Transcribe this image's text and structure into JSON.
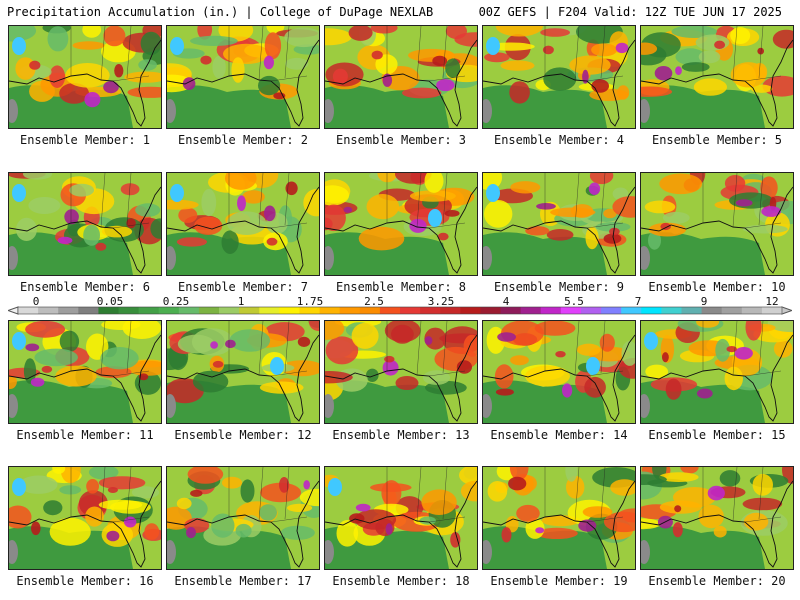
{
  "header": {
    "title": "Precipitation Accumulation (in.) | College of DuPage NEXLAB",
    "run_info": "00Z GEFS | F204 Valid: 12Z TUE JUN 17 2025"
  },
  "panels": [
    {
      "label": "Ensemble Member: 1"
    },
    {
      "label": "Ensemble Member: 2"
    },
    {
      "label": "Ensemble Member: 3"
    },
    {
      "label": "Ensemble Member: 4"
    },
    {
      "label": "Ensemble Member: 5"
    },
    {
      "label": "Ensemble Member: 6"
    },
    {
      "label": "Ensemble Member: 7"
    },
    {
      "label": "Ensemble Member: 8"
    },
    {
      "label": "Ensemble Member: 9"
    },
    {
      "label": "Ensemble Member: 10"
    },
    {
      "label": "Ensemble Member: 11"
    },
    {
      "label": "Ensemble Member: 12"
    },
    {
      "label": "Ensemble Member: 13"
    },
    {
      "label": "Ensemble Member: 14"
    },
    {
      "label": "Ensemble Member: 15"
    },
    {
      "label": "Ensemble Member: 16"
    },
    {
      "label": "Ensemble Member: 17"
    },
    {
      "label": "Ensemble Member: 18"
    },
    {
      "label": "Ensemble Member: 19"
    },
    {
      "label": "Ensemble Member: 20"
    }
  ],
  "colorbar": {
    "labels": [
      "0",
      "0.05",
      "0.25",
      "1",
      "1.75",
      "2.5",
      "3.25",
      "4",
      "5.5",
      "7",
      "9",
      "12"
    ],
    "colors": [
      "#d9d9d9",
      "#bdbdbd",
      "#9e9e9e",
      "#7f7f7f",
      "#2e7d32",
      "#388e3c",
      "#43a047",
      "#4caf50",
      "#66bb6a",
      "#7cb342",
      "#9ccc65",
      "#c0ca33",
      "#e6ee29",
      "#fff200",
      "#ffd600",
      "#ffb300",
      "#ff9800",
      "#fb8c00",
      "#f4511e",
      "#e53935",
      "#d32f2f",
      "#c62828",
      "#b71c1c",
      "#9b1b30",
      "#8e1b5a",
      "#a0208f",
      "#c026c8",
      "#e040fb",
      "#b060f0",
      "#8080ff",
      "#40c8ff",
      "#00e5ff",
      "#40d0d0",
      "#60b0b0",
      "#8a8a8a",
      "#a0a0a0",
      "#b8b8b8",
      "#d0d0d0"
    ]
  }
}
